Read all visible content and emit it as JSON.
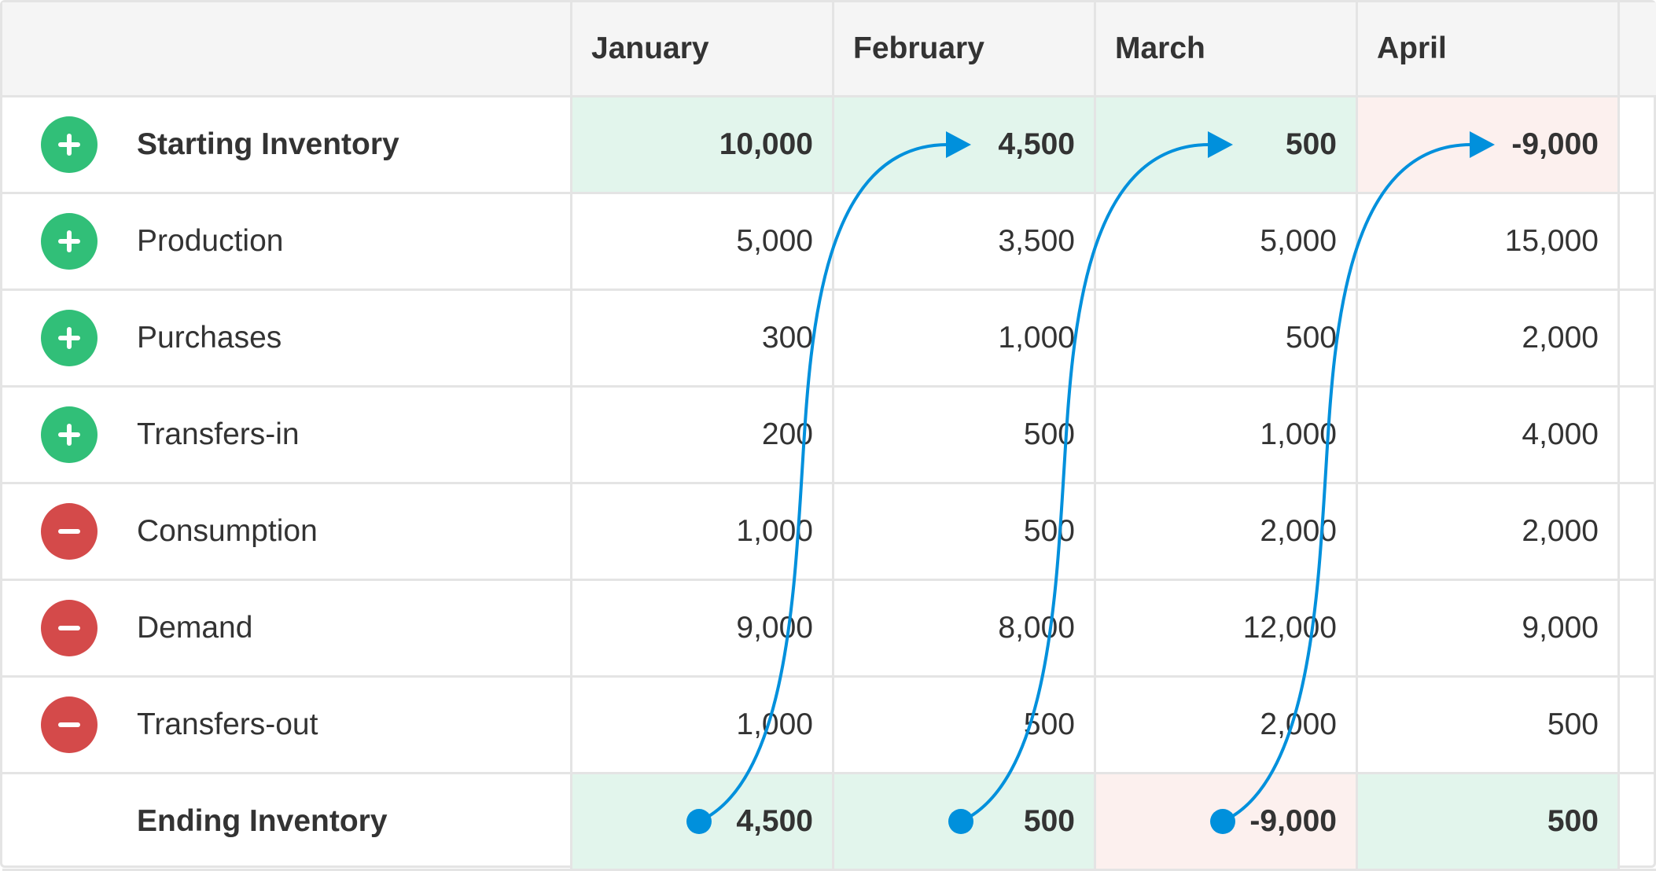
{
  "columns": [
    "January",
    "February",
    "March",
    "April"
  ],
  "rows": [
    {
      "label": "Starting Inventory",
      "sign": "plus",
      "values": [
        "10,000",
        "4,500",
        "500",
        "-9,000"
      ],
      "states": [
        "pos",
        "pos",
        "pos",
        "neg"
      ],
      "bold": true
    },
    {
      "label": "Production",
      "sign": "plus",
      "values": [
        "5,000",
        "3,500",
        "5,000",
        "15,000"
      ]
    },
    {
      "label": "Purchases",
      "sign": "plus",
      "values": [
        "300",
        "1,000",
        "500",
        "2,000"
      ]
    },
    {
      "label": "Transfers-in",
      "sign": "plus",
      "values": [
        "200",
        "500",
        "1,000",
        "4,000"
      ]
    },
    {
      "label": "Consumption",
      "sign": "minus",
      "values": [
        "1,000",
        "500",
        "2,000",
        "2,000"
      ]
    },
    {
      "label": "Demand",
      "sign": "minus",
      "values": [
        "9,000",
        "8,000",
        "12,000",
        "9,000"
      ]
    },
    {
      "label": "Transfers-out",
      "sign": "minus",
      "values": [
        "1,000",
        "500",
        "2,000",
        "500"
      ]
    },
    {
      "label": "Ending Inventory",
      "sign": "none",
      "values": [
        "4,500",
        "500",
        "-9,000",
        "500"
      ],
      "states": [
        "pos",
        "pos",
        "neg",
        "pos"
      ],
      "bold": true
    }
  ],
  "colors": {
    "positive_bg": "#e2f5ec",
    "negative_bg": "#fcf0ee",
    "plus_icon": "#31bf78",
    "minus_icon": "#d44a4a",
    "arrow": "#0090dc"
  }
}
